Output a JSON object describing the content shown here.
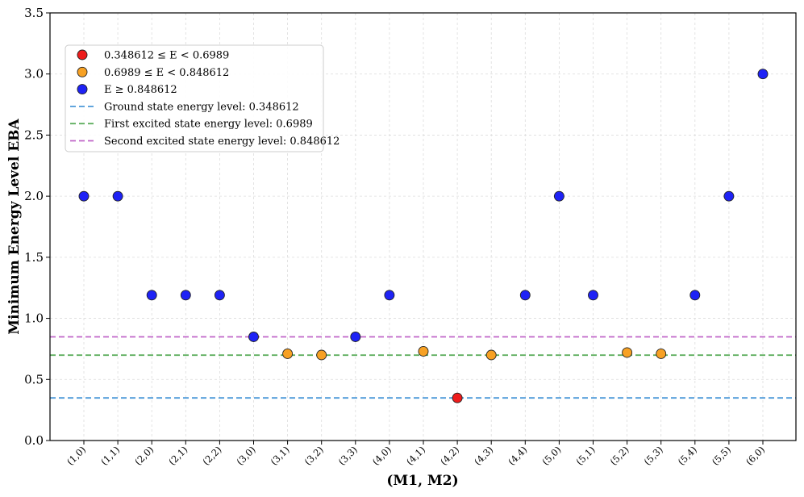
{
  "chart_data": {
    "type": "scatter",
    "xlabel": "(M1, M2)",
    "ylabel": "Minimum Energy Level EBA",
    "ylim": [
      0,
      3.5
    ],
    "yticks": [
      "0.0",
      "0.5",
      "1.0",
      "1.5",
      "2.0",
      "2.5",
      "3.0",
      "3.5"
    ],
    "grid": true,
    "legend_position": "top-left",
    "categories": [
      "(1,0)",
      "(1,1)",
      "(2,0)",
      "(2,1)",
      "(2,2)",
      "(3,0)",
      "(3,1)",
      "(3,2)",
      "(3,3)",
      "(4,0)",
      "(4,1)",
      "(4,2)",
      "(4,3)",
      "(4,4)",
      "(5,0)",
      "(5,1)",
      "(5,2)",
      "(5,3)",
      "(5,4)",
      "(5,5)",
      "(6,0)"
    ],
    "values": [
      2.0,
      2.0,
      1.19,
      1.19,
      1.19,
      0.848612,
      0.71,
      0.7,
      0.848612,
      1.19,
      0.73,
      0.348612,
      0.7,
      1.19,
      2.0,
      1.19,
      0.72,
      0.71,
      1.19,
      2.0,
      3.0
    ],
    "classes": [
      {
        "name": "E ≥ 0.848612"
      }
    ],
    "hlines": [
      {
        "value": 0.348612,
        "label": "Ground state energy level: 0.348612",
        "color": "#4a98d8"
      },
      {
        "value": 0.6989,
        "label": "First excited state energy level: 0.6989",
        "color": "#5fae5f"
      },
      {
        "value": 0.848612,
        "label": "Second excited state energy level: 0.848612",
        "color": "#c066c8"
      }
    ],
    "legend": [
      {
        "kind": "marker",
        "color": "#ee1c1c",
        "label": "0.348612 ≤ E < 0.6989"
      },
      {
        "kind": "marker",
        "color": "#f7a124",
        "label": "0.6989 ≤ E < 0.848612"
      },
      {
        "kind": "marker",
        "color": "#1e22f5",
        "label": "E ≥ 0.848612"
      },
      {
        "kind": "line",
        "color": "#4a98d8",
        "label": "Ground state energy level: 0.348612"
      },
      {
        "kind": "line",
        "color": "#5fae5f",
        "label": "First excited state energy level: 0.6989"
      },
      {
        "kind": "line",
        "color": "#c066c8",
        "label": "Second excited state energy level: 0.848612"
      }
    ],
    "thresholds": {
      "ground": 0.348612,
      "first": 0.6989,
      "second": 0.848612
    }
  }
}
